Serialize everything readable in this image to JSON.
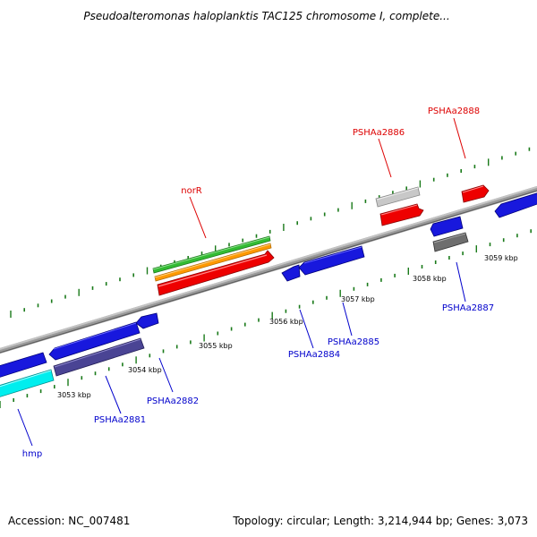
{
  "header": {
    "title": "Pseudoalteromonas haloplanktis TAC125 chromosome I, complete..."
  },
  "footer": {
    "accession": "Accession: NC_007481",
    "summary": "Topology: circular; Length: 3,214,944 bp; Genes: 3,073"
  },
  "colors": {
    "backbone": "#7f7f7f",
    "tick": "#1a7a1a",
    "label_forward": "#dd0000",
    "label_reverse": "#0000cc"
  },
  "ruler_labels": [
    "3053 kbp",
    "3054 kbp",
    "3055 kbp",
    "3056 kbp",
    "3057 kbp",
    "3058 kbp",
    "3059 kbp"
  ],
  "genes": [
    {
      "id": "norR",
      "label": "norR",
      "strand": "forward"
    },
    {
      "id": "PSHAa2886",
      "label": "PSHAa2886",
      "strand": "forward"
    },
    {
      "id": "PSHAa2888",
      "label": "PSHAa2888",
      "strand": "forward"
    },
    {
      "id": "hmp",
      "label": "hmp",
      "strand": "reverse"
    },
    {
      "id": "PSHAa2881",
      "label": "PSHAa2881",
      "strand": "reverse"
    },
    {
      "id": "PSHAa2882",
      "label": "PSHAa2882",
      "strand": "reverse"
    },
    {
      "id": "PSHAa2884",
      "label": "PSHAa2884",
      "strand": "reverse"
    },
    {
      "id": "PSHAa2885",
      "label": "PSHAa2885",
      "strand": "reverse"
    },
    {
      "id": "PSHAa2887",
      "label": "PSHAa2887",
      "strand": "reverse"
    }
  ]
}
